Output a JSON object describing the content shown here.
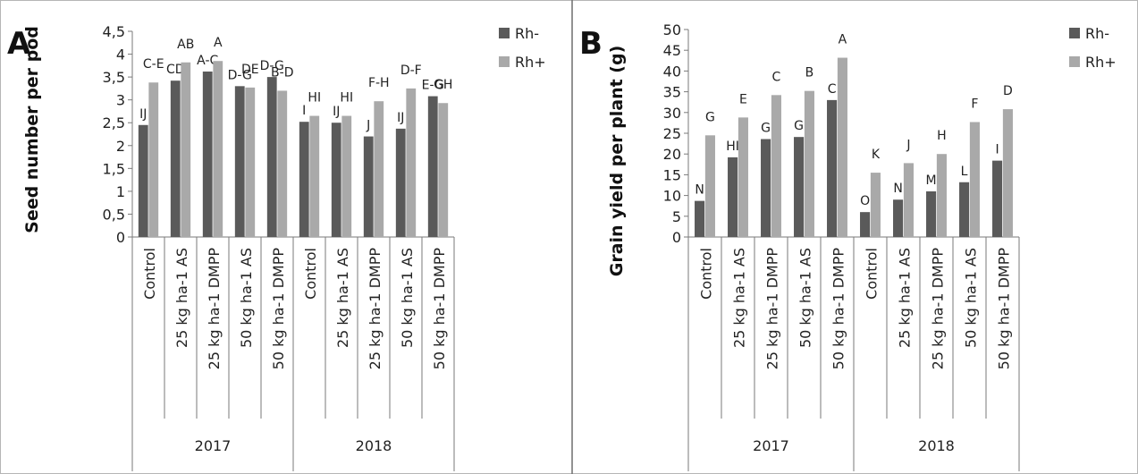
{
  "chart_data": [
    {
      "type": "bar",
      "panel_label": "A",
      "ylabel": "Seed number per pod",
      "ylim": [
        0,
        4.5
      ],
      "yticks": [
        "0",
        "0,5",
        "1",
        "1,5",
        "2",
        "2,5",
        "3",
        "3,5",
        "4",
        "4,5"
      ],
      "categories": [
        "Control",
        "25 kg ha-1 AS",
        "25 kg ha-1 DMPP",
        "50 kg ha-1 AS",
        "50 kg ha-1 DMPP",
        "Control",
        "25 kg ha-1 AS",
        "25 kg ha-1 DMPP",
        "50 kg ha-1 AS",
        "50 kg ha-1 DMPP"
      ],
      "groups": [
        {
          "label": "2017",
          "start": 0,
          "end": 4
        },
        {
          "label": "2018",
          "start": 5,
          "end": 9
        }
      ],
      "series": [
        {
          "name": "Rh-",
          "color": "#5a5a5a",
          "values": [
            2.45,
            3.42,
            3.62,
            3.3,
            3.5,
            2.52,
            2.5,
            2.2,
            2.37,
            3.08
          ],
          "labels": [
            "IJ",
            "CD",
            "A-C",
            "D-G",
            "D-G",
            "I",
            "IJ",
            "J",
            "IJ",
            "E-G"
          ]
        },
        {
          "name": "Rh+",
          "color": "#a9a9a9",
          "values": [
            3.38,
            3.82,
            3.85,
            3.27,
            3.2,
            2.65,
            2.65,
            2.97,
            3.25,
            2.93
          ],
          "labels": [
            "C-E",
            "AB",
            "A",
            "DE",
            "B-D",
            "HI",
            "HI",
            "F-H",
            "D-F",
            "GH"
          ]
        }
      ],
      "legend_position": "top-right",
      "grid": false
    },
    {
      "type": "bar",
      "panel_label": "B",
      "ylabel": "Grain yield per plant (g)",
      "ylim": [
        0,
        50
      ],
      "yticks": [
        "0",
        "5",
        "10",
        "15",
        "20",
        "25",
        "30",
        "35",
        "40",
        "45",
        "50"
      ],
      "categories": [
        "Control",
        "25 kg ha-1 AS",
        "25 kg ha-1 DMPP",
        "50 kg ha-1 AS",
        "50 kg ha-1 DMPP",
        "Control",
        "25 kg ha-1 AS",
        "25 kg ha-1 DMPP",
        "50 kg ha-1 AS",
        "50 kg ha-1 DMPP"
      ],
      "groups": [
        {
          "label": "2017",
          "start": 0,
          "end": 4
        },
        {
          "label": "2018",
          "start": 5,
          "end": 9
        }
      ],
      "series": [
        {
          "name": "Rh-",
          "color": "#5a5a5a",
          "values": [
            8.7,
            19.2,
            23.6,
            24.1,
            33.0,
            6.0,
            9.0,
            11.0,
            13.2,
            18.4
          ],
          "labels": [
            "N",
            "HI",
            "G",
            "G",
            "C",
            "O",
            "N",
            "M",
            "L",
            "I"
          ]
        },
        {
          "name": "Rh+",
          "color": "#a9a9a9",
          "values": [
            24.5,
            28.8,
            34.2,
            35.2,
            43.2,
            15.5,
            17.8,
            20.0,
            27.7,
            30.8
          ],
          "labels": [
            "G",
            "E",
            "C",
            "B",
            "A",
            "K",
            "J",
            "H",
            "F",
            "D"
          ]
        }
      ],
      "legend_position": "top-right",
      "grid": false
    }
  ]
}
